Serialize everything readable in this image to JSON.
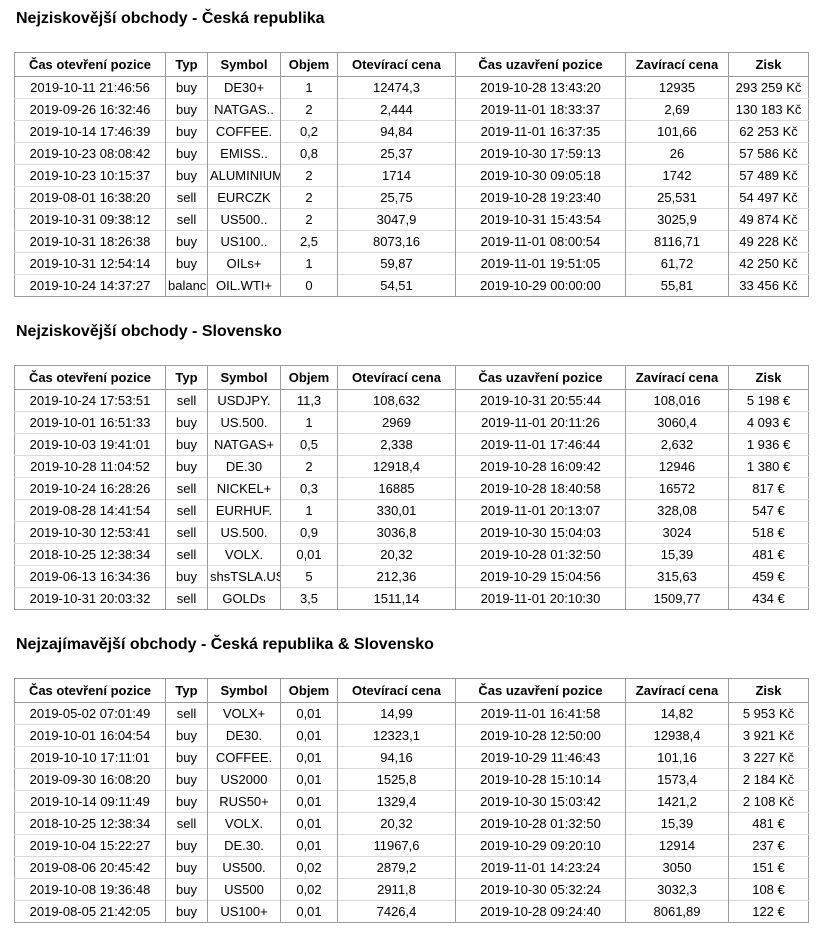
{
  "colors": {
    "text": "#000000",
    "table_outer_border": "#9b9b9b",
    "row_separator": "#d9d9d9",
    "background": "#ffffff"
  },
  "column_keys": [
    "open-time",
    "type",
    "symbol",
    "volume",
    "open-price",
    "close-time",
    "close-price",
    "profit"
  ],
  "sections": [
    {
      "title": "Nejziskovější obchody - Česká republika",
      "columns": [
        "Čas otevření pozice",
        "Typ",
        "Symbol",
        "Objem",
        "Otevírací cena",
        "Čas uzavření pozice",
        "Zavírací cena",
        "Zisk"
      ],
      "rows": [
        [
          "2019-10-11 21:46:56",
          "buy",
          "DE30+",
          "1",
          "12474,3",
          "2019-10-28 13:43:20",
          "12935",
          "293 259 Kč"
        ],
        [
          "2019-09-26 16:32:46",
          "buy",
          "NATGAS..",
          "2",
          "2,444",
          "2019-11-01 18:33:37",
          "2,69",
          "130 183 Kč"
        ],
        [
          "2019-10-14 17:46:39",
          "buy",
          "COFFEE.",
          "0,2",
          "94,84",
          "2019-11-01 16:37:35",
          "101,66",
          "62 253 Kč"
        ],
        [
          "2019-10-23 08:08:42",
          "buy",
          "EMISS..",
          "0,8",
          "25,37",
          "2019-10-30 17:59:13",
          "26",
          "57 586 Kč"
        ],
        [
          "2019-10-23 10:15:37",
          "buy",
          "ALUMINIUM..",
          "2",
          "1714",
          "2019-10-30 09:05:18",
          "1742",
          "57 489 Kč"
        ],
        [
          "2019-08-01 16:38:20",
          "sell",
          "EURCZK",
          "2",
          "25,75",
          "2019-10-28 19:23:40",
          "25,531",
          "54 497 Kč"
        ],
        [
          "2019-10-31 09:38:12",
          "sell",
          "US500..",
          "2",
          "3047,9",
          "2019-10-31 15:43:54",
          "3025,9",
          "49 874 Kč"
        ],
        [
          "2019-10-31 18:26:38",
          "buy",
          "US100..",
          "2,5",
          "8073,16",
          "2019-11-01 08:00:54",
          "8116,71",
          "49 228 Kč"
        ],
        [
          "2019-10-31 12:54:14",
          "buy",
          "OILs+",
          "1",
          "59,87",
          "2019-11-01 19:51:05",
          "61,72",
          "42 250 Kč"
        ],
        [
          "2019-10-24 14:37:27",
          "balance",
          "OIL.WTI+",
          "0",
          "54,51",
          "2019-10-29 00:00:00",
          "55,81",
          "33 456 Kč"
        ]
      ]
    },
    {
      "title": "Nejziskovější obchody - Slovensko",
      "columns": [
        "Čas otevření pozice",
        "Typ",
        "Symbol",
        "Objem",
        "Otevírací cena",
        "Čas uzavření pozice",
        "Zavírací cena",
        "Zisk"
      ],
      "rows": [
        [
          "2019-10-24 17:53:51",
          "sell",
          "USDJPY.",
          "11,3",
          "108,632",
          "2019-10-31 20:55:44",
          "108,016",
          "5 198 €"
        ],
        [
          "2019-10-01 16:51:33",
          "buy",
          "US.500.",
          "1",
          "2969",
          "2019-11-01 20:11:26",
          "3060,4",
          "4 093 €"
        ],
        [
          "2019-10-03 19:41:01",
          "buy",
          "NATGAS+",
          "0,5",
          "2,338",
          "2019-11-01 17:46:44",
          "2,632",
          "1 936 €"
        ],
        [
          "2019-10-28 11:04:52",
          "buy",
          "DE.30",
          "2",
          "12918,4",
          "2019-10-28 16:09:42",
          "12946",
          "1 380 €"
        ],
        [
          "2019-10-24 16:28:26",
          "sell",
          "NICKEL+",
          "0,3",
          "16885",
          "2019-10-28 18:40:58",
          "16572",
          "817 €"
        ],
        [
          "2019-08-28 14:41:54",
          "sell",
          "EURHUF.",
          "1",
          "330,01",
          "2019-11-01 20:13:07",
          "328,08",
          "547 €"
        ],
        [
          "2019-10-30 12:53:41",
          "sell",
          "US.500.",
          "0,9",
          "3036,8",
          "2019-10-30 15:04:03",
          "3024",
          "518 €"
        ],
        [
          "2018-10-25 12:38:34",
          "sell",
          "VOLX.",
          "0,01",
          "20,32",
          "2019-10-28 01:32:50",
          "15,39",
          "481 €"
        ],
        [
          "2019-06-13 16:34:36",
          "buy",
          "shsTSLA.US",
          "5",
          "212,36",
          "2019-10-29 15:04:56",
          "315,63",
          "459 €"
        ],
        [
          "2019-10-31 20:03:32",
          "sell",
          "GOLDs",
          "3,5",
          "1511,14",
          "2019-11-01 20:10:30",
          "1509,77",
          "434 €"
        ]
      ]
    },
    {
      "title": "Nejzajímavější obchody - Česká republika & Slovensko",
      "columns": [
        "Čas otevření pozice",
        "Typ",
        "Symbol",
        "Objem",
        "Otevírací cena",
        "Čas uzavření pozice",
        "Zavírací cena",
        "Zisk"
      ],
      "rows": [
        [
          "2019-05-02 07:01:49",
          "sell",
          "VOLX+",
          "0,01",
          "14,99",
          "2019-11-01 16:41:58",
          "14,82",
          "5 953 Kč"
        ],
        [
          "2019-10-01 16:04:54",
          "buy",
          "DE30.",
          "0,01",
          "12323,1",
          "2019-10-28 12:50:00",
          "12938,4",
          "3 921 Kč"
        ],
        [
          "2019-10-10 17:11:01",
          "buy",
          "COFFEE.",
          "0,01",
          "94,16",
          "2019-10-29 11:46:43",
          "101,16",
          "3 227 Kč"
        ],
        [
          "2019-09-30 16:08:20",
          "buy",
          "US2000",
          "0,01",
          "1525,8",
          "2019-10-28 15:10:14",
          "1573,4",
          "2 184 Kč"
        ],
        [
          "2019-10-14 09:11:49",
          "buy",
          "RUS50+",
          "0,01",
          "1329,4",
          "2019-10-30 15:03:42",
          "1421,2",
          "2 108 Kč"
        ],
        [
          "2018-10-25 12:38:34",
          "sell",
          "VOLX.",
          "0,01",
          "20,32",
          "2019-10-28 01:32:50",
          "15,39",
          "481 €"
        ],
        [
          "2019-10-04 15:22:27",
          "buy",
          "DE.30.",
          "0,01",
          "11967,6",
          "2019-10-29 09:20:10",
          "12914",
          "237 €"
        ],
        [
          "2019-08-06 20:45:42",
          "buy",
          "US500.",
          "0,02",
          "2879,2",
          "2019-11-01 14:23:24",
          "3050",
          "151 €"
        ],
        [
          "2019-10-08 19:36:48",
          "buy",
          "US500",
          "0,02",
          "2911,8",
          "2019-10-30 05:32:24",
          "3032,3",
          "108 €"
        ],
        [
          "2019-08-05 21:42:05",
          "buy",
          "US100+",
          "0,01",
          "7426,4",
          "2019-10-28 09:24:40",
          "8061,89",
          "122 €"
        ]
      ]
    }
  ]
}
